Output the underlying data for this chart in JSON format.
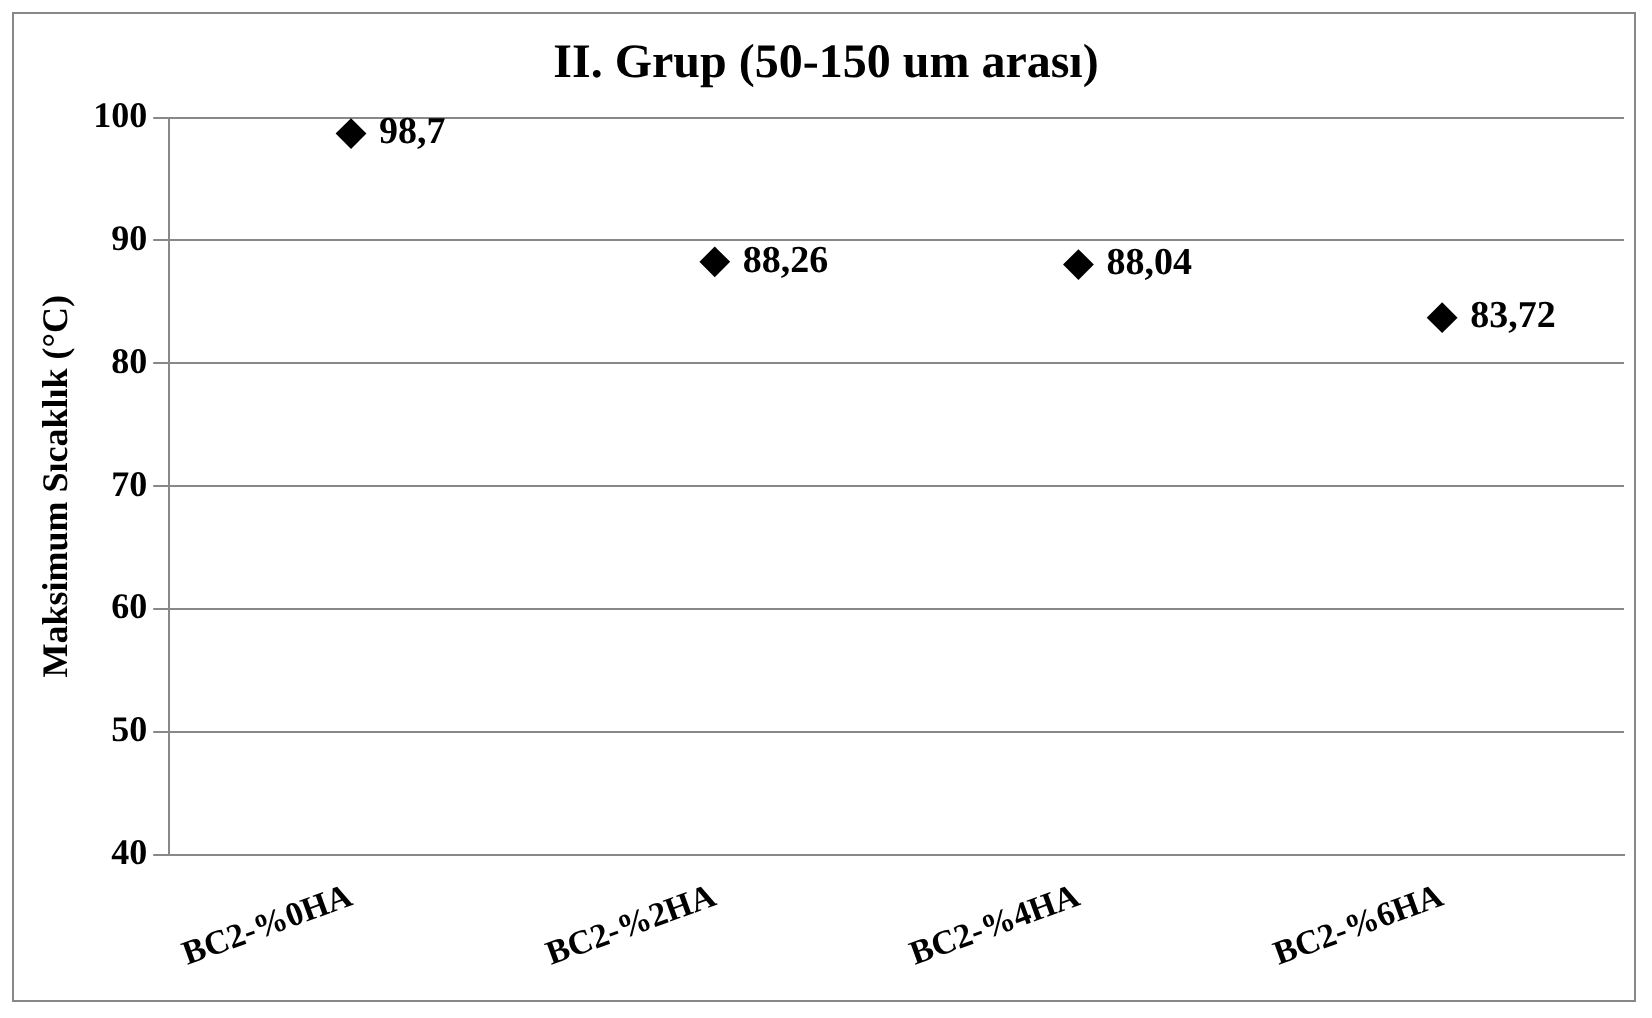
{
  "chart_data": {
    "type": "scatter",
    "title": "II. Grup (50-150 um arası)",
    "ylabel": "Maksimum Sıcaklık (°C)",
    "categories": [
      "BC2-%0HA",
      "BC2-%2HA",
      "BC2-%4HA",
      "BC2-%6HA"
    ],
    "series": [
      {
        "color": "#000000",
        "values": [
          98.7,
          88.26,
          88.04,
          83.72
        ],
        "value_labels": [
          "98,7",
          "88,26",
          "88,04",
          "83,72"
        ]
      }
    ],
    "ylim": [
      40,
      100
    ],
    "yticks": [
      40,
      50,
      60,
      70,
      80,
      90,
      100
    ],
    "grid": "y",
    "legend": false,
    "marker": "diamond"
  }
}
